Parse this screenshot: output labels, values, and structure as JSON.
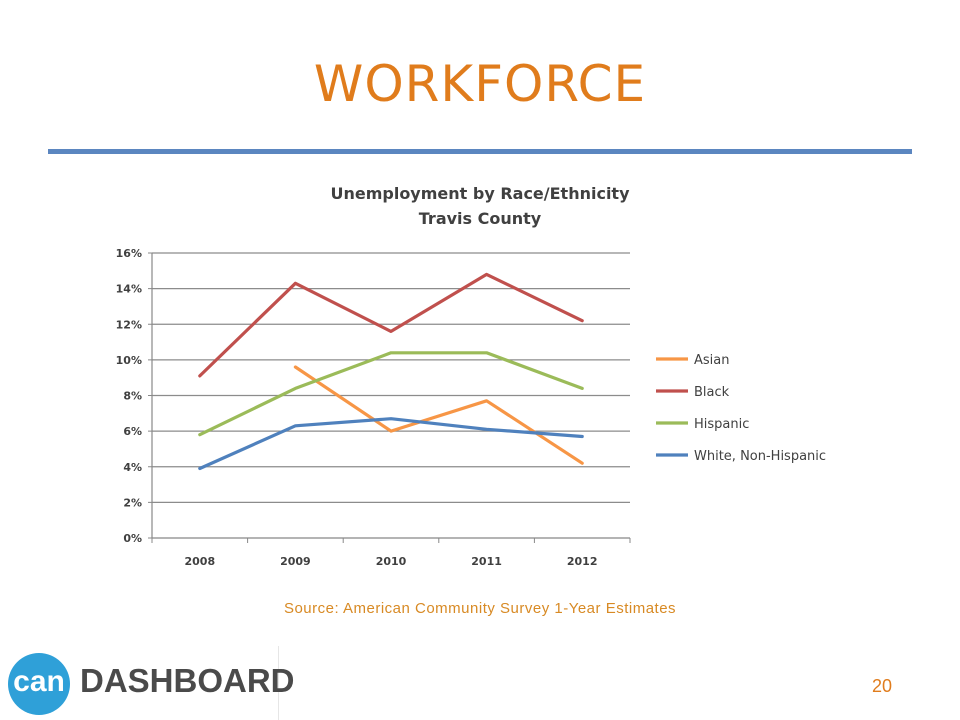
{
  "slide": {
    "title": "WORKFORCE",
    "source": "Source:  American Community Survey 1-Year Estimates",
    "page_number": "20",
    "logo": {
      "mark_text": "can",
      "word": "DASHBOARD",
      "mark_color": "#2fa0d8"
    },
    "accent_color": "#e07c1c",
    "rule_color": "#5b86c0"
  },
  "chart_data": {
    "type": "line",
    "title": "Unemployment by Race/Ethnicity",
    "subtitle": "Travis County",
    "x": [
      "2008",
      "2009",
      "2010",
      "2011",
      "2012"
    ],
    "y_ticks": [
      "0%",
      "2%",
      "4%",
      "6%",
      "8%",
      "10%",
      "12%",
      "14%",
      "16%"
    ],
    "ylim": [
      0,
      16
    ],
    "grid": true,
    "legend_position": "right",
    "series": [
      {
        "name": "Asian",
        "color": "#f79646",
        "values": [
          null,
          9.6,
          6.0,
          7.7,
          4.2
        ]
      },
      {
        "name": "Black",
        "color": "#c0504d",
        "values": [
          9.1,
          14.3,
          11.6,
          14.8,
          12.2
        ]
      },
      {
        "name": "Hispanic",
        "color": "#9bbb59",
        "values": [
          5.8,
          8.4,
          10.4,
          10.4,
          8.4
        ]
      },
      {
        "name": "White, Non-Hispanic",
        "color": "#4f81bd",
        "values": [
          3.9,
          6.3,
          6.7,
          6.1,
          5.7
        ]
      }
    ]
  }
}
